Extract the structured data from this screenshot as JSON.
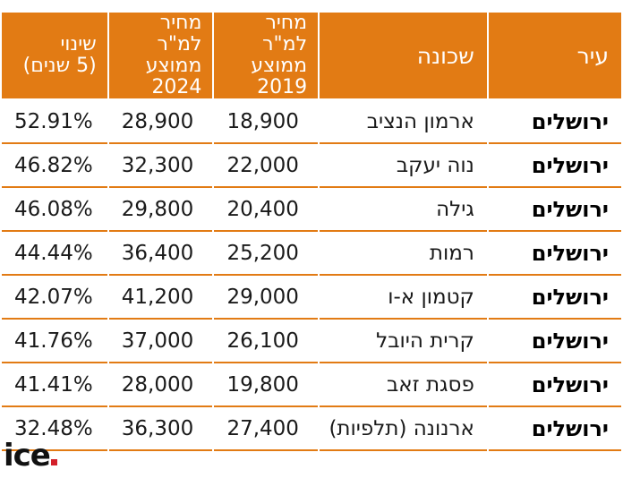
{
  "chart_data": {
    "type": "table",
    "columns": [
      "עיר",
      "שכונה",
      "מחיר למ\"ר ממוצע 2019",
      "מחיר למ\"ר ממוצע 2024",
      "שינוי (5 שנים)"
    ],
    "header": {
      "city": "עיר",
      "neighborhood": "שכונה",
      "price2019_line1": "מחיר למ\"ר",
      "price2019_line2": "ממוצע",
      "price2019_line3": "2019",
      "price2024_line1": "מחיר למ\"ר",
      "price2024_line2": "ממוצע",
      "price2024_line3": "2024",
      "change_line1": "שינוי",
      "change_line2": "(5 שנים)"
    },
    "rows": [
      {
        "city": "ירושלים",
        "neighborhood": "ארמון הנציב",
        "price2019": "18,900",
        "price2024": "28,900",
        "change": "52.91%"
      },
      {
        "city": "ירושלים",
        "neighborhood": "נוה יעקב",
        "price2019": "22,000",
        "price2024": "32,300",
        "change": "46.82%"
      },
      {
        "city": "ירושלים",
        "neighborhood": "גילה",
        "price2019": "20,400",
        "price2024": "29,800",
        "change": "46.08%"
      },
      {
        "city": "ירושלים",
        "neighborhood": "רמות",
        "price2019": "25,200",
        "price2024": "36,400",
        "change": "44.44%"
      },
      {
        "city": "ירושלים",
        "neighborhood": "קטמון א-ו",
        "price2019": "29,000",
        "price2024": "41,200",
        "change": "42.07%"
      },
      {
        "city": "ירושלים",
        "neighborhood": "קרית היובל",
        "price2019": "26,100",
        "price2024": "37,000",
        "change": "41.76%"
      },
      {
        "city": "ירושלים",
        "neighborhood": "פסגת זאב",
        "price2019": "19,800",
        "price2024": "28,000",
        "change": "41.41%"
      },
      {
        "city": "ירושלים",
        "neighborhood": "ארנונה (תלפיות)",
        "price2019": "27,400",
        "price2024": "36,300",
        "change": "32.48%"
      }
    ]
  },
  "colors": {
    "header_bg": "#e27b14",
    "header_text": "#ffffff",
    "row_divider": "#e27b14",
    "logo_dot": "#d3202a"
  },
  "logo": {
    "text": "ice"
  }
}
